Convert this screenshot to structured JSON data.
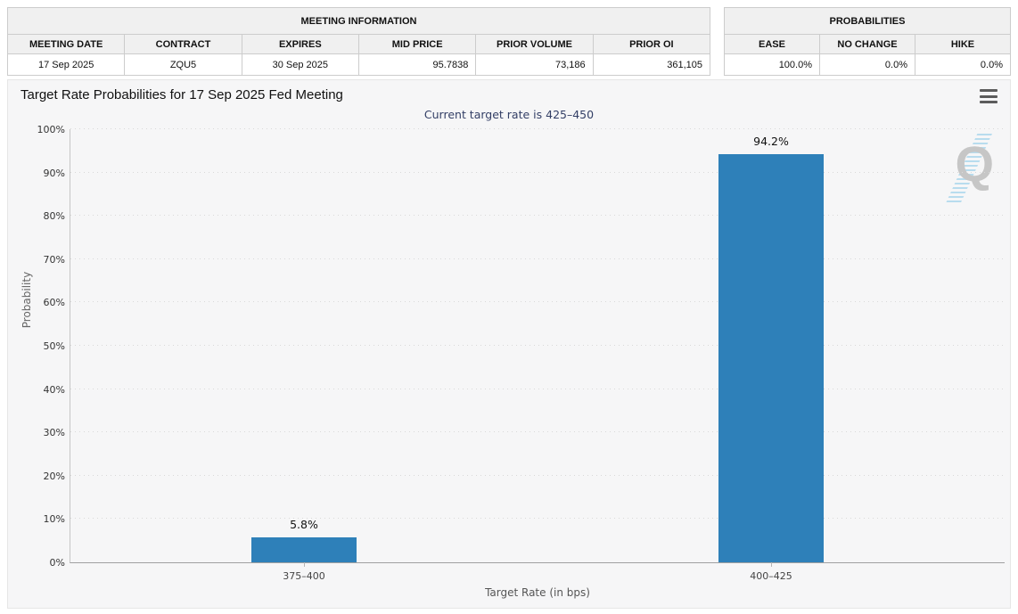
{
  "tables": {
    "meeting_info": {
      "title": "MEETING INFORMATION",
      "columns": [
        "MEETING DATE",
        "CONTRACT",
        "EXPIRES",
        "MID PRICE",
        "PRIOR VOLUME",
        "PRIOR OI"
      ],
      "row": [
        "17 Sep 2025",
        "ZQU5",
        "30 Sep 2025",
        "95.7838",
        "73,186",
        "361,105"
      ]
    },
    "probabilities": {
      "title": "PROBABILITIES",
      "columns": [
        "EASE",
        "NO CHANGE",
        "HIKE"
      ],
      "row": [
        "100.0%",
        "0.0%",
        "0.0%"
      ]
    }
  },
  "chart": {
    "title": "Target Rate Probabilities for 17 Sep 2025 Fed Meeting",
    "subtitle": "Current target rate is 425–450",
    "menu_icon": "hamburger-menu-icon",
    "watermark_letter": "Q"
  },
  "colors": {
    "bar": "#2e80b9",
    "subtitle_text": "#333f66",
    "watermark_stripes": "#b8dcee"
  },
  "chart_data": {
    "type": "bar",
    "title": "Target Rate Probabilities for 17 Sep 2025 Fed Meeting",
    "subtitle": "Current target rate is 425–450",
    "categories": [
      "375–400",
      "400–425"
    ],
    "values": [
      5.8,
      94.2
    ],
    "value_labels": [
      "5.8%",
      "94.2%"
    ],
    "xlabel": "Target Rate (in bps)",
    "ylabel": "Probability",
    "ylim": [
      0,
      100
    ],
    "yticks": [
      "0%",
      "10%",
      "20%",
      "30%",
      "40%",
      "50%",
      "60%",
      "70%",
      "80%",
      "90%",
      "100%"
    ],
    "grid": "dotted horizontal",
    "legend": "none",
    "bar_color": "#2e80b9"
  }
}
